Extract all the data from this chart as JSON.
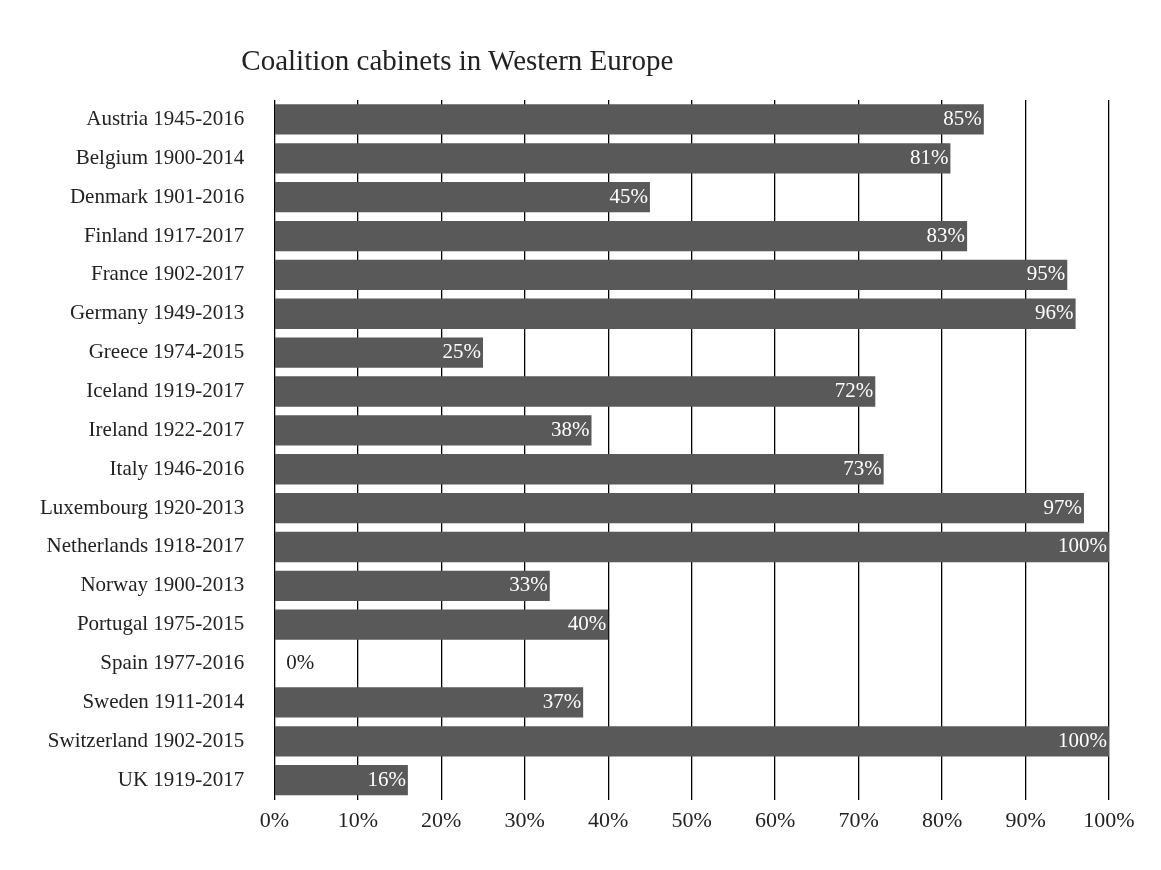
{
  "chart_data": {
    "type": "bar",
    "orientation": "horizontal",
    "title": "Coalition cabinets in Western Europe",
    "categories": [
      "Austria 1945-2016",
      "Belgium 1900-2014",
      "Denmark 1901-2016",
      "Finland 1917-2017",
      "France 1902-2017",
      "Germany 1949-2013",
      "Greece 1974-2015",
      "Iceland 1919-2017",
      "Ireland 1922-2017",
      "Italy 1946-2016",
      "Luxembourg 1920-2013",
      "Netherlands 1918-2017",
      "Norway 1900-2013",
      "Portugal 1975-2015",
      "Spain 1977-2016",
      "Sweden 1911-2014",
      "Switzerland 1902-2015",
      "UK 1919-2017"
    ],
    "values": [
      85,
      81,
      45,
      83,
      95,
      96,
      25,
      72,
      38,
      73,
      97,
      100,
      33,
      40,
      0,
      37,
      100,
      16
    ],
    "value_labels": [
      "85%",
      "81%",
      "45%",
      "83%",
      "95%",
      "96%",
      "25%",
      "72%",
      "38%",
      "73%",
      "97%",
      "100%",
      "33%",
      "40%",
      "0%",
      "37%",
      "100%",
      "16%"
    ],
    "color": "#595959",
    "xlim": [
      0,
      100
    ],
    "xticks": [
      {
        "value": 0,
        "label": "0%"
      },
      {
        "value": 10,
        "label": "10%"
      },
      {
        "value": 20,
        "label": "20%"
      },
      {
        "value": 30,
        "label": "30%"
      },
      {
        "value": 40,
        "label": "40%"
      },
      {
        "value": 50,
        "label": "50%"
      },
      {
        "value": 60,
        "label": "60%"
      },
      {
        "value": 70,
        "label": "70%"
      },
      {
        "value": 80,
        "label": "80%"
      },
      {
        "value": 90,
        "label": "90%"
      },
      {
        "value": 100,
        "label": "100%"
      }
    ],
    "grid": "x",
    "legend": false
  }
}
